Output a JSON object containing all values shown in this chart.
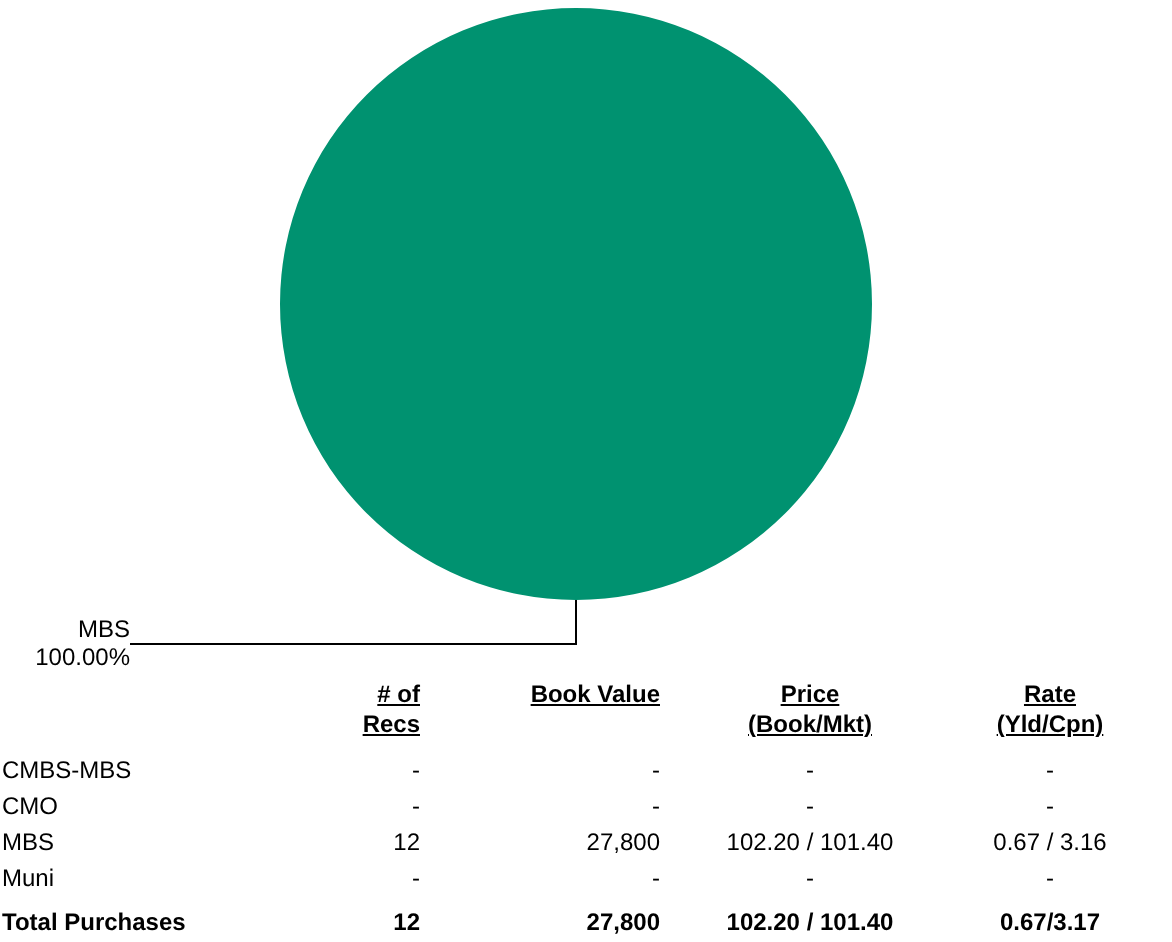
{
  "chart_data": [
    {
      "type": "pie",
      "categories": [
        "MBS"
      ],
      "values": [
        100
      ],
      "colors": [
        "#009270"
      ],
      "value_labels": [
        "100.00%"
      ],
      "legend": false
    },
    {
      "type": "other",
      "categories": [
        "# of\nRecs",
        "Book Value",
        "Price\n(Book/Mkt)",
        "Rate\n(Yld/Cpn)"
      ],
      "y_categories": [
        "CMBS-MBS",
        "CMO",
        "MBS",
        "Muni",
        "Total Purchases"
      ],
      "cell_labels": [
        [
          "-",
          "-",
          "-",
          "-"
        ],
        [
          "-",
          "-",
          "-",
          "-"
        ],
        [
          "12",
          "27,800",
          "102.20 / 101.40",
          "0.67 / 3.16"
        ],
        [
          "-",
          "-",
          "-",
          "-"
        ],
        [
          "12",
          "27,800",
          "102.20 / 101.40",
          "0.67/3.17"
        ]
      ]
    }
  ]
}
